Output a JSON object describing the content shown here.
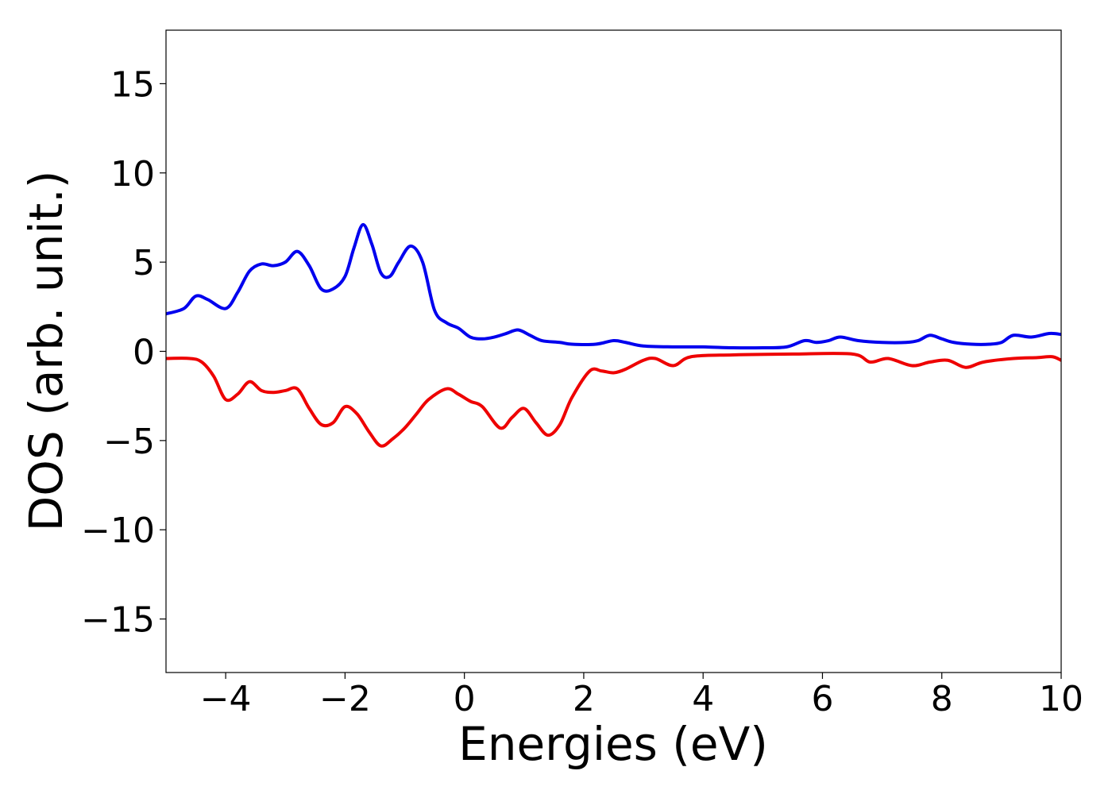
{
  "chart_data": {
    "type": "line",
    "title": "",
    "xlabel": "Energies (eV)",
    "ylabel": "DOS (arb. unit.)",
    "xlim": [
      -5,
      10
    ],
    "ylim": [
      -18,
      18
    ],
    "xticks": [
      -4,
      -2,
      0,
      2,
      4,
      6,
      8,
      10
    ],
    "yticks": [
      -15,
      -10,
      -5,
      0,
      5,
      10,
      15
    ],
    "xtick_labels": [
      "−4",
      "−2",
      "0",
      "2",
      "4",
      "6",
      "8",
      "10"
    ],
    "ytick_labels": [
      "−15",
      "−10",
      "−5",
      "0",
      "5",
      "10",
      "15"
    ],
    "grid": false,
    "legend": "none",
    "series": [
      {
        "color": "#0000ee",
        "points": [
          [
            -5.0,
            2.1
          ],
          [
            -4.7,
            2.4
          ],
          [
            -4.5,
            3.1
          ],
          [
            -4.3,
            2.9
          ],
          [
            -4.0,
            2.4
          ],
          [
            -3.8,
            3.3
          ],
          [
            -3.6,
            4.5
          ],
          [
            -3.4,
            4.9
          ],
          [
            -3.2,
            4.8
          ],
          [
            -3.0,
            5.0
          ],
          [
            -2.8,
            5.6
          ],
          [
            -2.6,
            4.8
          ],
          [
            -2.4,
            3.5
          ],
          [
            -2.2,
            3.5
          ],
          [
            -2.0,
            4.2
          ],
          [
            -1.85,
            5.8
          ],
          [
            -1.7,
            7.1
          ],
          [
            -1.55,
            6.0
          ],
          [
            -1.4,
            4.4
          ],
          [
            -1.25,
            4.2
          ],
          [
            -1.1,
            5.0
          ],
          [
            -0.9,
            5.9
          ],
          [
            -0.7,
            5.0
          ],
          [
            -0.5,
            2.3
          ],
          [
            -0.3,
            1.6
          ],
          [
            -0.1,
            1.3
          ],
          [
            0.1,
            0.8
          ],
          [
            0.3,
            0.7
          ],
          [
            0.5,
            0.8
          ],
          [
            0.7,
            1.0
          ],
          [
            0.9,
            1.2
          ],
          [
            1.1,
            0.9
          ],
          [
            1.3,
            0.6
          ],
          [
            1.6,
            0.5
          ],
          [
            1.8,
            0.4
          ],
          [
            2.2,
            0.4
          ],
          [
            2.5,
            0.6
          ],
          [
            2.7,
            0.5
          ],
          [
            3.0,
            0.3
          ],
          [
            3.5,
            0.25
          ],
          [
            4.0,
            0.25
          ],
          [
            4.5,
            0.2
          ],
          [
            5.0,
            0.2
          ],
          [
            5.4,
            0.25
          ],
          [
            5.7,
            0.6
          ],
          [
            5.9,
            0.5
          ],
          [
            6.1,
            0.6
          ],
          [
            6.3,
            0.8
          ],
          [
            6.6,
            0.6
          ],
          [
            7.0,
            0.5
          ],
          [
            7.4,
            0.5
          ],
          [
            7.6,
            0.6
          ],
          [
            7.8,
            0.9
          ],
          [
            8.0,
            0.7
          ],
          [
            8.2,
            0.5
          ],
          [
            8.5,
            0.4
          ],
          [
            8.8,
            0.4
          ],
          [
            9.0,
            0.5
          ],
          [
            9.2,
            0.9
          ],
          [
            9.5,
            0.8
          ],
          [
            9.8,
            1.0
          ],
          [
            10.0,
            0.95
          ]
        ]
      },
      {
        "color": "#ee0000",
        "points": [
          [
            -5.0,
            -0.4
          ],
          [
            -4.6,
            -0.4
          ],
          [
            -4.4,
            -0.6
          ],
          [
            -4.2,
            -1.4
          ],
          [
            -4.0,
            -2.7
          ],
          [
            -3.8,
            -2.4
          ],
          [
            -3.6,
            -1.7
          ],
          [
            -3.4,
            -2.2
          ],
          [
            -3.2,
            -2.3
          ],
          [
            -3.0,
            -2.2
          ],
          [
            -2.8,
            -2.1
          ],
          [
            -2.6,
            -3.2
          ],
          [
            -2.4,
            -4.1
          ],
          [
            -2.2,
            -4.0
          ],
          [
            -2.0,
            -3.1
          ],
          [
            -1.8,
            -3.5
          ],
          [
            -1.6,
            -4.5
          ],
          [
            -1.4,
            -5.3
          ],
          [
            -1.2,
            -4.9
          ],
          [
            -1.0,
            -4.3
          ],
          [
            -0.8,
            -3.5
          ],
          [
            -0.6,
            -2.7
          ],
          [
            -0.3,
            -2.1
          ],
          [
            -0.1,
            -2.4
          ],
          [
            0.1,
            -2.8
          ],
          [
            0.3,
            -3.1
          ],
          [
            0.6,
            -4.3
          ],
          [
            0.8,
            -3.7
          ],
          [
            1.0,
            -3.2
          ],
          [
            1.2,
            -4.0
          ],
          [
            1.4,
            -4.7
          ],
          [
            1.6,
            -4.1
          ],
          [
            1.8,
            -2.6
          ],
          [
            2.1,
            -1.1
          ],
          [
            2.3,
            -1.1
          ],
          [
            2.5,
            -1.2
          ],
          [
            2.7,
            -1.0
          ],
          [
            3.0,
            -0.5
          ],
          [
            3.2,
            -0.4
          ],
          [
            3.5,
            -0.8
          ],
          [
            3.8,
            -0.3
          ],
          [
            4.5,
            -0.2
          ],
          [
            5.5,
            -0.15
          ],
          [
            6.5,
            -0.15
          ],
          [
            6.8,
            -0.6
          ],
          [
            7.1,
            -0.4
          ],
          [
            7.5,
            -0.8
          ],
          [
            7.8,
            -0.6
          ],
          [
            8.1,
            -0.5
          ],
          [
            8.4,
            -0.9
          ],
          [
            8.7,
            -0.6
          ],
          [
            9.2,
            -0.4
          ],
          [
            9.6,
            -0.35
          ],
          [
            9.85,
            -0.3
          ],
          [
            10.0,
            -0.5
          ]
        ]
      }
    ]
  }
}
